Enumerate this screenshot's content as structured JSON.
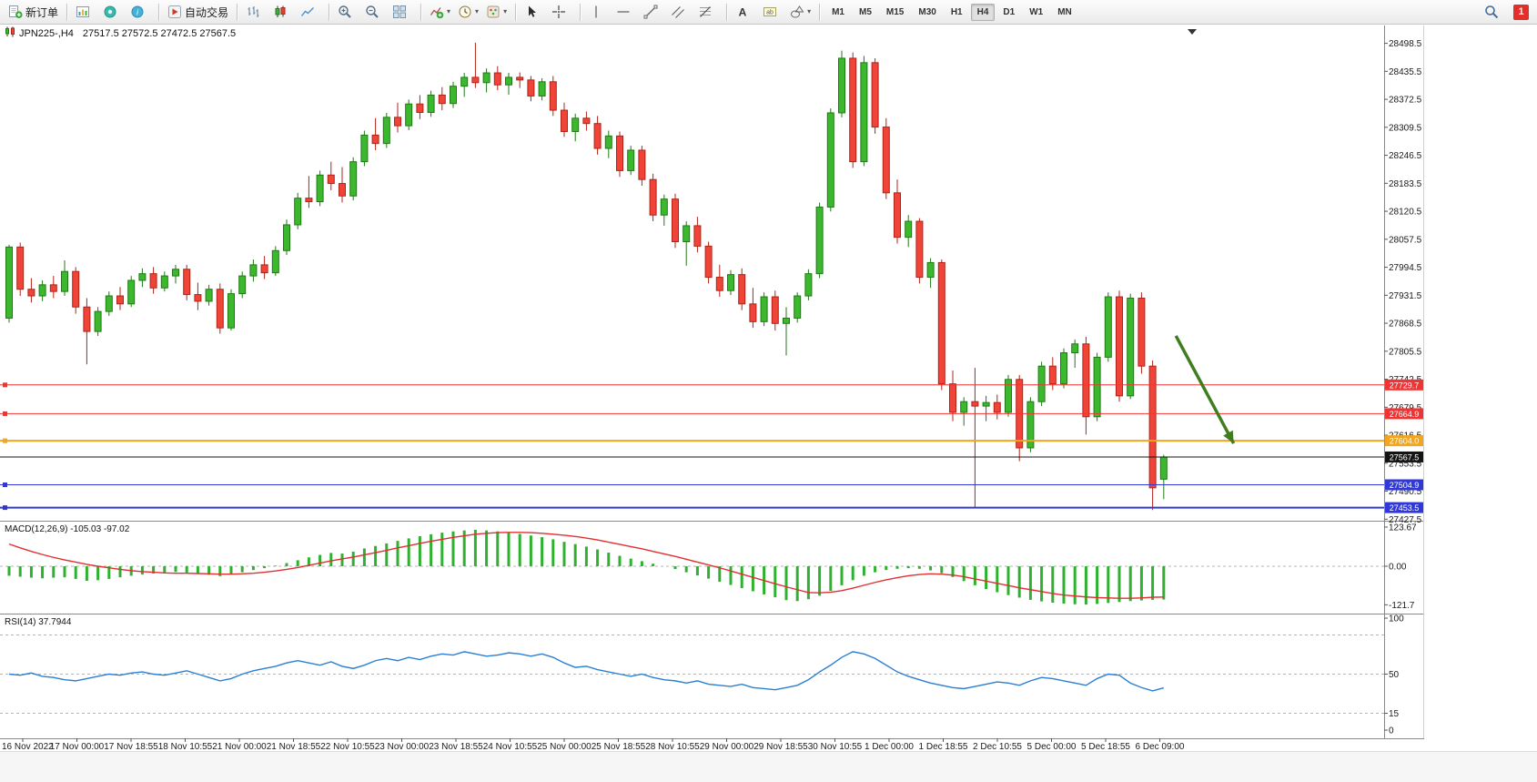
{
  "toolbar": {
    "groups": [
      {
        "items": [
          {
            "name": "new-order",
            "glyph": "new-order",
            "label": "新订单"
          }
        ]
      },
      {
        "items": [
          {
            "name": "new-chart",
            "glyph": "chart-window"
          },
          {
            "name": "profiles",
            "glyph": "profiles"
          },
          {
            "name": "data-window",
            "glyph": "data-window"
          }
        ]
      },
      {
        "items": [
          {
            "name": "autotrading",
            "glyph": "autotrading",
            "label": "自动交易"
          }
        ]
      },
      {
        "items": [
          {
            "name": "bar-chart-mode",
            "glyph": "bars"
          },
          {
            "name": "candle-chart-mode",
            "glyph": "candles"
          },
          {
            "name": "line-chart-mode",
            "glyph": "line-chart"
          }
        ]
      },
      {
        "items": [
          {
            "name": "zoom-in",
            "glyph": "zoom-in"
          },
          {
            "name": "zoom-out",
            "glyph": "zoom-out"
          },
          {
            "name": "tile-windows",
            "glyph": "tile"
          }
        ]
      },
      {
        "items": [
          {
            "name": "indicators",
            "glyph": "indicators",
            "dropdown": true
          },
          {
            "name": "periods",
            "glyph": "clock",
            "dropdown": true
          },
          {
            "name": "templates",
            "glyph": "template",
            "dropdown": true
          }
        ]
      },
      {
        "items": [
          {
            "name": "cursor",
            "glyph": "cursor"
          },
          {
            "name": "crosshair",
            "glyph": "crosshair"
          }
        ]
      },
      {
        "items": [
          {
            "name": "vertical-line",
            "glyph": "vline"
          },
          {
            "name": "horizontal-line",
            "glyph": "hline"
          },
          {
            "name": "trendline",
            "glyph": "trendline"
          },
          {
            "name": "equidistant-channel",
            "glyph": "channel"
          },
          {
            "name": "fibonacci-retracement",
            "glyph": "fibonacci"
          }
        ]
      },
      {
        "items": [
          {
            "name": "text",
            "glyph": "text"
          },
          {
            "name": "text-label",
            "glyph": "text-label"
          },
          {
            "name": "arrows",
            "glyph": "shapes",
            "dropdown": true
          }
        ]
      }
    ],
    "timeframes": [
      "M1",
      "M5",
      "M15",
      "M30",
      "H1",
      "H4",
      "D1",
      "W1",
      "MN"
    ],
    "active_timeframe": "H4",
    "right": {
      "search_icon": "search",
      "badge": "1"
    }
  },
  "chart": {
    "title": "JPN225-,H4",
    "title_icon": "candlestick-chart-icon",
    "ohlc": "27517.5 27572.5 27472.5 27567.5",
    "indicators": {
      "macd_label": "MACD(12,26,9)",
      "macd_values": "-105.03 -97.02",
      "rsi_label": "RSI(14)",
      "rsi_value": "37.7944"
    },
    "price_axis": [
      "28498.5",
      "28435.5",
      "28372.5",
      "28309.5",
      "28246.5",
      "28183.5",
      "28120.5",
      "28057.5",
      "27994.5",
      "27931.5",
      "27868.5",
      "27805.5",
      "27742.5",
      "27679.5",
      "27616.5",
      "27553.5",
      "27490.5",
      "27427.5"
    ],
    "time_axis": [
      "16 Nov 2022",
      "17 Nov 00:00",
      "17 Nov 18:55",
      "18 Nov 10:55",
      "21 Nov 00:00",
      "21 Nov 18:55",
      "22 Nov 10:55",
      "23 Nov 00:00",
      "23 Nov 18:55",
      "24 Nov 10:55",
      "25 Nov 00:00",
      "25 Nov 18:55",
      "28 Nov 10:55",
      "29 Nov 00:00",
      "29 Nov 18:55",
      "30 Nov 10:55",
      "1 Dec 00:00",
      "1 Dec 18:55",
      "2 Dec 10:55",
      "5 Dec 00:00",
      "5 Dec 18:55",
      "6 Dec 09:00"
    ],
    "macd_axis": [
      "123.67",
      "0.00",
      "-121.7"
    ],
    "rsi_axis": [
      "100",
      "50",
      "15",
      "0"
    ]
  },
  "chart_data": {
    "type": "candlestick",
    "symbol": "JPN225-",
    "timeframe": "H4",
    "ohlc_current": {
      "open": 27517.5,
      "high": 27572.5,
      "low": 27472.5,
      "close": 27567.5
    },
    "price_range": [
      27424,
      28512
    ],
    "colors": {
      "up": "#3cb82e",
      "up_stroke": "#1f7a14",
      "down": "#f04438",
      "down_stroke": "#b02318",
      "bg": "#ffffff"
    },
    "candles": [
      [
        27880,
        28045,
        27870,
        28040
      ],
      [
        28040,
        28050,
        27930,
        27945
      ],
      [
        27945,
        27970,
        27915,
        27930
      ],
      [
        27930,
        27965,
        27918,
        27955
      ],
      [
        27955,
        27975,
        27925,
        27940
      ],
      [
        27940,
        28010,
        27930,
        27985
      ],
      [
        27985,
        27995,
        27890,
        27905
      ],
      [
        27905,
        27925,
        27776,
        27850
      ],
      [
        27850,
        27905,
        27840,
        27895
      ],
      [
        27895,
        27940,
        27885,
        27930
      ],
      [
        27930,
        27950,
        27898,
        27912
      ],
      [
        27912,
        27975,
        27905,
        27965
      ],
      [
        27965,
        27992,
        27950,
        27980
      ],
      [
        27980,
        27995,
        27935,
        27948
      ],
      [
        27948,
        27985,
        27940,
        27975
      ],
      [
        27975,
        28000,
        27958,
        27990
      ],
      [
        27990,
        28000,
        27920,
        27933
      ],
      [
        27933,
        27960,
        27898,
        27918
      ],
      [
        27918,
        27955,
        27908,
        27945
      ],
      [
        27945,
        27958,
        27845,
        27858
      ],
      [
        27858,
        27945,
        27852,
        27935
      ],
      [
        27935,
        27985,
        27925,
        27975
      ],
      [
        27975,
        28012,
        27962,
        28000
      ],
      [
        28000,
        28020,
        27968,
        27982
      ],
      [
        27982,
        28042,
        27975,
        28032
      ],
      [
        28032,
        28102,
        28022,
        28090
      ],
      [
        28090,
        28162,
        28080,
        28150
      ],
      [
        28150,
        28200,
        28128,
        28142
      ],
      [
        28142,
        28212,
        28132,
        28202
      ],
      [
        28202,
        28232,
        28168,
        28183
      ],
      [
        28183,
        28220,
        28140,
        28155
      ],
      [
        28155,
        28242,
        28145,
        28232
      ],
      [
        28232,
        28302,
        28222,
        28292
      ],
      [
        28292,
        28330,
        28258,
        28273
      ],
      [
        28273,
        28342,
        28263,
        28332
      ],
      [
        28332,
        28365,
        28298,
        28313
      ],
      [
        28313,
        28372,
        28303,
        28362
      ],
      [
        28362,
        28382,
        28328,
        28343
      ],
      [
        28343,
        28392,
        28333,
        28382
      ],
      [
        28382,
        28400,
        28348,
        28363
      ],
      [
        28363,
        28412,
        28353,
        28402
      ],
      [
        28402,
        28432,
        28378,
        28422
      ],
      [
        28422,
        28500,
        28398,
        28410
      ],
      [
        28410,
        28442,
        28388,
        28432
      ],
      [
        28432,
        28447,
        28393,
        28405
      ],
      [
        28405,
        28432,
        28383,
        28422
      ],
      [
        28422,
        28433,
        28398,
        28416
      ],
      [
        28416,
        28425,
        28368,
        28380
      ],
      [
        28380,
        28420,
        28370,
        28412
      ],
      [
        28412,
        28425,
        28335,
        28348
      ],
      [
        28348,
        28365,
        28288,
        28300
      ],
      [
        28300,
        28340,
        28278,
        28330
      ],
      [
        28330,
        28345,
        28302,
        28318
      ],
      [
        28318,
        28335,
        28248,
        28262
      ],
      [
        28262,
        28302,
        28240,
        28290
      ],
      [
        28290,
        28300,
        28198,
        28212
      ],
      [
        28212,
        28268,
        28202,
        28258
      ],
      [
        28258,
        28268,
        28178,
        28192
      ],
      [
        28192,
        28205,
        28098,
        28112
      ],
      [
        28112,
        28158,
        28088,
        28148
      ],
      [
        28148,
        28160,
        28038,
        28052
      ],
      [
        28052,
        28098,
        27998,
        28088
      ],
      [
        28088,
        28108,
        28028,
        28042
      ],
      [
        28042,
        28052,
        27958,
        27972
      ],
      [
        27972,
        28000,
        27928,
        27942
      ],
      [
        27942,
        27988,
        27932,
        27978
      ],
      [
        27978,
        27992,
        27898,
        27912
      ],
      [
        27912,
        27948,
        27858,
        27872
      ],
      [
        27872,
        27938,
        27862,
        27928
      ],
      [
        27928,
        27942,
        27852,
        27868
      ],
      [
        27868,
        27905,
        27796,
        27880
      ],
      [
        27880,
        27938,
        27870,
        27930
      ],
      [
        27930,
        27990,
        27920,
        27980
      ],
      [
        27980,
        28140,
        27970,
        28130
      ],
      [
        28130,
        28352,
        28120,
        28342
      ],
      [
        28342,
        28482,
        28332,
        28465
      ],
      [
        28465,
        28478,
        28218,
        28232
      ],
      [
        28232,
        28470,
        28222,
        28455
      ],
      [
        28455,
        28465,
        28295,
        28310
      ],
      [
        28310,
        28330,
        28148,
        28162
      ],
      [
        28162,
        28192,
        28048,
        28062
      ],
      [
        28062,
        28112,
        28040,
        28098
      ],
      [
        28098,
        28105,
        27958,
        27972
      ],
      [
        27972,
        28015,
        27948,
        28005
      ],
      [
        28005,
        28012,
        27718,
        27732
      ],
      [
        27732,
        27762,
        27648,
        27668
      ],
      [
        27668,
        27702,
        27638,
        27692
      ],
      [
        27692,
        27768,
        27452,
        27682
      ],
      [
        27682,
        27705,
        27648,
        27690
      ],
      [
        27690,
        27708,
        27652,
        27668
      ],
      [
        27668,
        27752,
        27658,
        27742
      ],
      [
        27742,
        27752,
        27558,
        27588
      ],
      [
        27588,
        27702,
        27578,
        27692
      ],
      [
        27692,
        27782,
        27682,
        27772
      ],
      [
        27772,
        27792,
        27718,
        27732
      ],
      [
        27732,
        27812,
        27722,
        27802
      ],
      [
        27802,
        27832,
        27768,
        27822
      ],
      [
        27822,
        27838,
        27618,
        27658
      ],
      [
        27658,
        27802,
        27648,
        27792
      ],
      [
        27792,
        27938,
        27782,
        27928
      ],
      [
        27928,
        27942,
        27692,
        27705
      ],
      [
        27705,
        27935,
        27698,
        27925
      ],
      [
        27925,
        27938,
        27755,
        27772
      ],
      [
        27772,
        27785,
        27448,
        27498
      ],
      [
        27517.5,
        27572.5,
        27472.5,
        27567.5
      ]
    ],
    "levels": [
      {
        "price": 27729.7,
        "label": "27729.7",
        "color": "#f03434",
        "handle": true,
        "width": 1
      },
      {
        "price": 27664.9,
        "label": "27664.9",
        "color": "#f03434",
        "handle": true,
        "width": 1
      },
      {
        "price": 27604.0,
        "label": "27604.0",
        "color": "#f2a51e",
        "handle": true,
        "width": 2
      },
      {
        "price": 27567.5,
        "label": "27567.5",
        "color": "#141414",
        "handle": false,
        "width": 1
      },
      {
        "price": 27504.9,
        "label": "27504.9",
        "color": "#3038d8",
        "handle": true,
        "width": 1
      },
      {
        "price": 27453.5,
        "label": "27453.5",
        "color": "#3038d8",
        "handle": true,
        "width": 2
      }
    ],
    "arrow": {
      "from_index": 105.1,
      "from_price": 27840,
      "to_index": 110.3,
      "to_price": 27598,
      "color": "#3f7d21"
    },
    "macd": {
      "title": "MACD(12,26,9)",
      "main": -105.03,
      "signal_value": -97.02,
      "axis": [
        123.67,
        0,
        -121.7
      ],
      "hist_color": "#2fb12f",
      "signal_color": "#e03030",
      "hist": [
        -30,
        -33,
        -36,
        -38,
        -36,
        -35,
        -40,
        -46,
        -44,
        -40,
        -35,
        -30,
        -26,
        -23,
        -20,
        -18,
        -20,
        -24,
        -27,
        -31,
        -26,
        -19,
        -12,
        -6,
        2,
        10,
        19,
        28,
        36,
        42,
        40,
        46,
        56,
        64,
        72,
        80,
        88,
        95,
        101,
        106,
        110,
        113,
        115,
        113,
        110,
        106,
        102,
        97,
        92,
        85,
        77,
        70,
        62,
        53,
        43,
        33,
        24,
        16,
        8,
        0,
        -9,
        -19,
        -29,
        -39,
        -49,
        -59,
        -69,
        -79,
        -89,
        -98,
        -107,
        -110,
        -104,
        -93,
        -78,
        -60,
        -44,
        -30,
        -19,
        -12,
        -8,
        -6,
        -8,
        -13,
        -22,
        -34,
        -47,
        -60,
        -72,
        -82,
        -91,
        -99,
        -106,
        -111,
        -115,
        -118,
        -120,
        -121,
        -119,
        -116,
        -113,
        -110,
        -108,
        -106,
        -105.03
      ],
      "signal": [
        70,
        58,
        47,
        37,
        28,
        20,
        13,
        6,
        0,
        -5,
        -10,
        -14,
        -17,
        -19,
        -21,
        -22,
        -22,
        -23,
        -24,
        -25,
        -25,
        -24,
        -22,
        -19,
        -15,
        -10,
        -4,
        3,
        10,
        17,
        23,
        29,
        36,
        43,
        50,
        58,
        65,
        72,
        79,
        85,
        91,
        96,
        101,
        104,
        106,
        107,
        107,
        106,
        104,
        101,
        98,
        94,
        89,
        83,
        76,
        69,
        62,
        55,
        47,
        39,
        31,
        22,
        13,
        4,
        -5,
        -15,
        -25,
        -35,
        -45,
        -55,
        -65,
        -74,
        -83,
        -84,
        -82,
        -77,
        -69,
        -60,
        -51,
        -43,
        -36,
        -30,
        -26,
        -24,
        -25,
        -28,
        -33,
        -40,
        -47,
        -54,
        -61,
        -68,
        -74,
        -80,
        -86,
        -91,
        -94,
        -97,
        -99,
        -100,
        -101,
        -101,
        -100,
        -98,
        -97.02
      ]
    },
    "rsi": {
      "title": "RSI(14)",
      "current": 37.7944,
      "color": "#2a7fd4",
      "levels": [
        85,
        50,
        15
      ],
      "axis": [
        100,
        50,
        15,
        0
      ],
      "values": [
        50,
        49,
        51,
        48,
        47,
        45,
        44,
        46,
        48,
        50,
        49,
        51,
        52,
        50,
        49,
        51,
        53,
        50,
        47,
        44,
        46,
        50,
        53,
        55,
        57,
        60,
        62,
        60,
        58,
        61,
        57,
        55,
        58,
        62,
        64,
        62,
        65,
        63,
        66,
        68,
        67,
        70,
        68,
        66,
        67,
        69,
        68,
        66,
        68,
        65,
        60,
        56,
        57,
        54,
        52,
        50,
        48,
        50,
        47,
        45,
        44,
        42,
        44,
        41,
        40,
        39,
        41,
        38,
        37,
        36,
        38,
        40,
        45,
        52,
        58,
        65,
        70,
        68,
        64,
        58,
        52,
        48,
        45,
        42,
        40,
        38,
        37,
        39,
        41,
        43,
        42,
        40,
        44,
        47,
        46,
        44,
        42,
        40,
        46,
        50,
        49,
        42,
        38,
        35,
        37.79
      ]
    }
  }
}
